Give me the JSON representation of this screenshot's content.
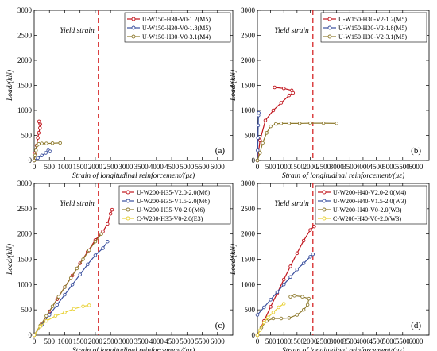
{
  "chart_data": [
    {
      "type": "line",
      "panel_label": "(a)",
      "xlabel": "Strain of longitudinal reinforcement/(με)",
      "ylabel": "Load/(kN)",
      "xlim": [
        0,
        6500
      ],
      "ylim": [
        0,
        3000
      ],
      "xticks": [
        0,
        500,
        1000,
        1500,
        2000,
        2500,
        3000,
        3500,
        4000,
        4500,
        5000,
        5500,
        6000
      ],
      "yticks": [
        0,
        500,
        1000,
        1500,
        2000,
        2500,
        3000
      ],
      "grid": false,
      "legend_position": "top-right",
      "annotation": {
        "text": "Yield strain",
        "x": 2100
      },
      "series": [
        {
          "name": "U-W150-H30-V0-1.2(M5)",
          "color": "#c0141c",
          "marker": "o",
          "x": [
            0,
            40,
            80,
            120,
            150,
            190,
            200,
            180,
            160
          ],
          "y": [
            0,
            150,
            300,
            450,
            550,
            650,
            720,
            760,
            780
          ]
        },
        {
          "name": "U-W150-H30-V0-1.8(M5)",
          "color": "#3a4f9e",
          "marker": "o",
          "x": [
            0,
            120,
            250,
            380,
            460,
            520
          ],
          "y": [
            0,
            50,
            100,
            150,
            200,
            180
          ]
        },
        {
          "name": "U-W150-H30-V0-3.1(M4)",
          "color": "#8e7a2e",
          "marker": "o",
          "x": [
            0,
            30,
            60,
            90,
            150,
            250,
            400,
            600,
            850
          ],
          "y": [
            0,
            100,
            200,
            300,
            330,
            340,
            340,
            345,
            350
          ]
        }
      ]
    },
    {
      "type": "line",
      "panel_label": "(b)",
      "xlabel": "Strain of longitudinal reinforcement/(με)",
      "ylabel": "Load/(kN)",
      "xlim": [
        0,
        6500
      ],
      "ylim": [
        0,
        3000
      ],
      "xticks": [
        0,
        500,
        1000,
        1500,
        2000,
        2500,
        3000,
        3500,
        4000,
        4500,
        5000,
        5500,
        6000
      ],
      "yticks": [
        0,
        500,
        1000,
        1500,
        2000,
        2500,
        3000
      ],
      "grid": false,
      "legend_position": "top-right",
      "annotation": {
        "text": "Yield strain",
        "x": 2100
      },
      "series": [
        {
          "name": "U-W150-H30-V2-1.2(M5)",
          "color": "#c0141c",
          "marker": "o",
          "x": [
            0,
            100,
            300,
            600,
            900,
            1200,
            1350,
            1300,
            1000,
            650
          ],
          "y": [
            0,
            400,
            800,
            1000,
            1150,
            1300,
            1350,
            1400,
            1440,
            1460
          ]
        },
        {
          "name": "U-W150-H30-V2-1.8(M5)",
          "color": "#3a4f9e",
          "marker": "o",
          "x": [
            0,
            10,
            20,
            30,
            40,
            50
          ],
          "y": [
            0,
            200,
            450,
            700,
            900,
            950
          ]
        },
        {
          "name": "U-W150-H30-V2-3.1(M5)",
          "color": "#8e7a2e",
          "marker": "o",
          "x": [
            0,
            100,
            200,
            350,
            500,
            700,
            900,
            1200,
            1600,
            2000,
            2500,
            3000
          ],
          "y": [
            0,
            150,
            350,
            550,
            680,
            730,
            740,
            740,
            740,
            745,
            745,
            740
          ]
        }
      ]
    },
    {
      "type": "line",
      "panel_label": "(c)",
      "xlabel": "Strain of longitudinal reinforcement/(με)",
      "ylabel": "Load/(kN)",
      "xlim": [
        0,
        6500
      ],
      "ylim": [
        0,
        3000
      ],
      "xticks": [
        0,
        500,
        1000,
        1500,
        2000,
        2500,
        3000,
        3500,
        4000,
        4500,
        5000,
        5500,
        6000
      ],
      "yticks": [
        0,
        500,
        1000,
        1500,
        2000,
        2500,
        3000
      ],
      "grid": false,
      "legend_position": "top-right",
      "annotation": {
        "text": "Yield strain",
        "x": 2100
      },
      "series": [
        {
          "name": "U-W200-H35-V2.0-2.0(M6)",
          "color": "#c0141c",
          "marker": "o",
          "x": [
            0,
            250,
            500,
            750,
            1000,
            1250,
            1500,
            1750,
            2000,
            2250,
            2400,
            2500,
            2550
          ],
          "y": [
            0,
            230,
            470,
            710,
            950,
            1180,
            1420,
            1650,
            1880,
            2050,
            2200,
            2400,
            2480
          ]
        },
        {
          "name": "U-W200-H35-V1.5-2.0(M6)",
          "color": "#3a4f9e",
          "marker": "o",
          "x": [
            0,
            250,
            500,
            750,
            1000,
            1250,
            1500,
            1750,
            2000,
            2250,
            2400
          ],
          "y": [
            0,
            200,
            400,
            600,
            800,
            1000,
            1200,
            1400,
            1580,
            1720,
            1850
          ]
        },
        {
          "name": "U-W200-H35-V0-2.0(M6)",
          "color": "#8e7a2e",
          "marker": "o",
          "x": [
            0,
            200,
            400,
            600,
            800,
            1000,
            1200,
            1400,
            1600,
            1800,
            2000,
            2200
          ],
          "y": [
            0,
            190,
            380,
            570,
            760,
            950,
            1130,
            1320,
            1500,
            1680,
            1850,
            2000
          ]
        },
        {
          "name": "C-W200-H35-V0-2.0(E3)",
          "color": "#e9d23a",
          "marker": "o",
          "x": [
            0,
            200,
            400,
            700,
            1000,
            1300,
            1600,
            1800
          ],
          "y": [
            0,
            170,
            280,
            380,
            450,
            520,
            570,
            590
          ]
        }
      ]
    },
    {
      "type": "line",
      "panel_label": "(d)",
      "xlabel": "Strain of longitudinal reinforcement/(με)",
      "ylabel": "Load/(kN)",
      "xlim": [
        0,
        6500
      ],
      "ylim": [
        0,
        3000
      ],
      "xticks": [
        0,
        500,
        1000,
        1500,
        2000,
        2500,
        3000,
        3500,
        4000,
        4500,
        5000,
        5500,
        6000
      ],
      "yticks": [
        0,
        500,
        1000,
        1500,
        2000,
        2500,
        3000
      ],
      "grid": false,
      "legend_position": "top-right",
      "annotation": {
        "text": "Yield strain",
        "x": 2100
      },
      "series": [
        {
          "name": "U-W200-H40-V2.0-2.0(M4)",
          "color": "#c0141c",
          "marker": "o",
          "x": [
            0,
            250,
            500,
            750,
            1000,
            1250,
            1500,
            1750,
            2000,
            2150
          ],
          "y": [
            0,
            280,
            560,
            830,
            1100,
            1360,
            1620,
            1870,
            2080,
            2150
          ]
        },
        {
          "name": "U-W200-H40-V1.5-2.0(W3)",
          "color": "#3a4f9e",
          "marker": "o",
          "x": [
            0,
            250,
            500,
            750,
            1000,
            1250,
            1500,
            1750,
            2000,
            2100
          ],
          "y": [
            400,
            550,
            700,
            850,
            1000,
            1150,
            1300,
            1420,
            1550,
            1600
          ]
        },
        {
          "name": "U-W200-H40-V0-2.0(W3)",
          "color": "#8e7a2e",
          "marker": "o",
          "x": [
            0,
            150,
            350,
            600,
            900,
            1200,
            1500,
            1750,
            1900,
            1950,
            1700,
            1400,
            1250
          ],
          "y": [
            0,
            150,
            280,
            330,
            330,
            340,
            400,
            500,
            600,
            720,
            760,
            780,
            760
          ]
        },
        {
          "name": "C-W200-H40-V0-2.0(W3)",
          "color": "#e9d23a",
          "marker": "o",
          "x": [
            0,
            100,
            250,
            400,
            600,
            800,
            1000
          ],
          "y": [
            0,
            100,
            250,
            350,
            450,
            550,
            620
          ]
        }
      ]
    }
  ]
}
